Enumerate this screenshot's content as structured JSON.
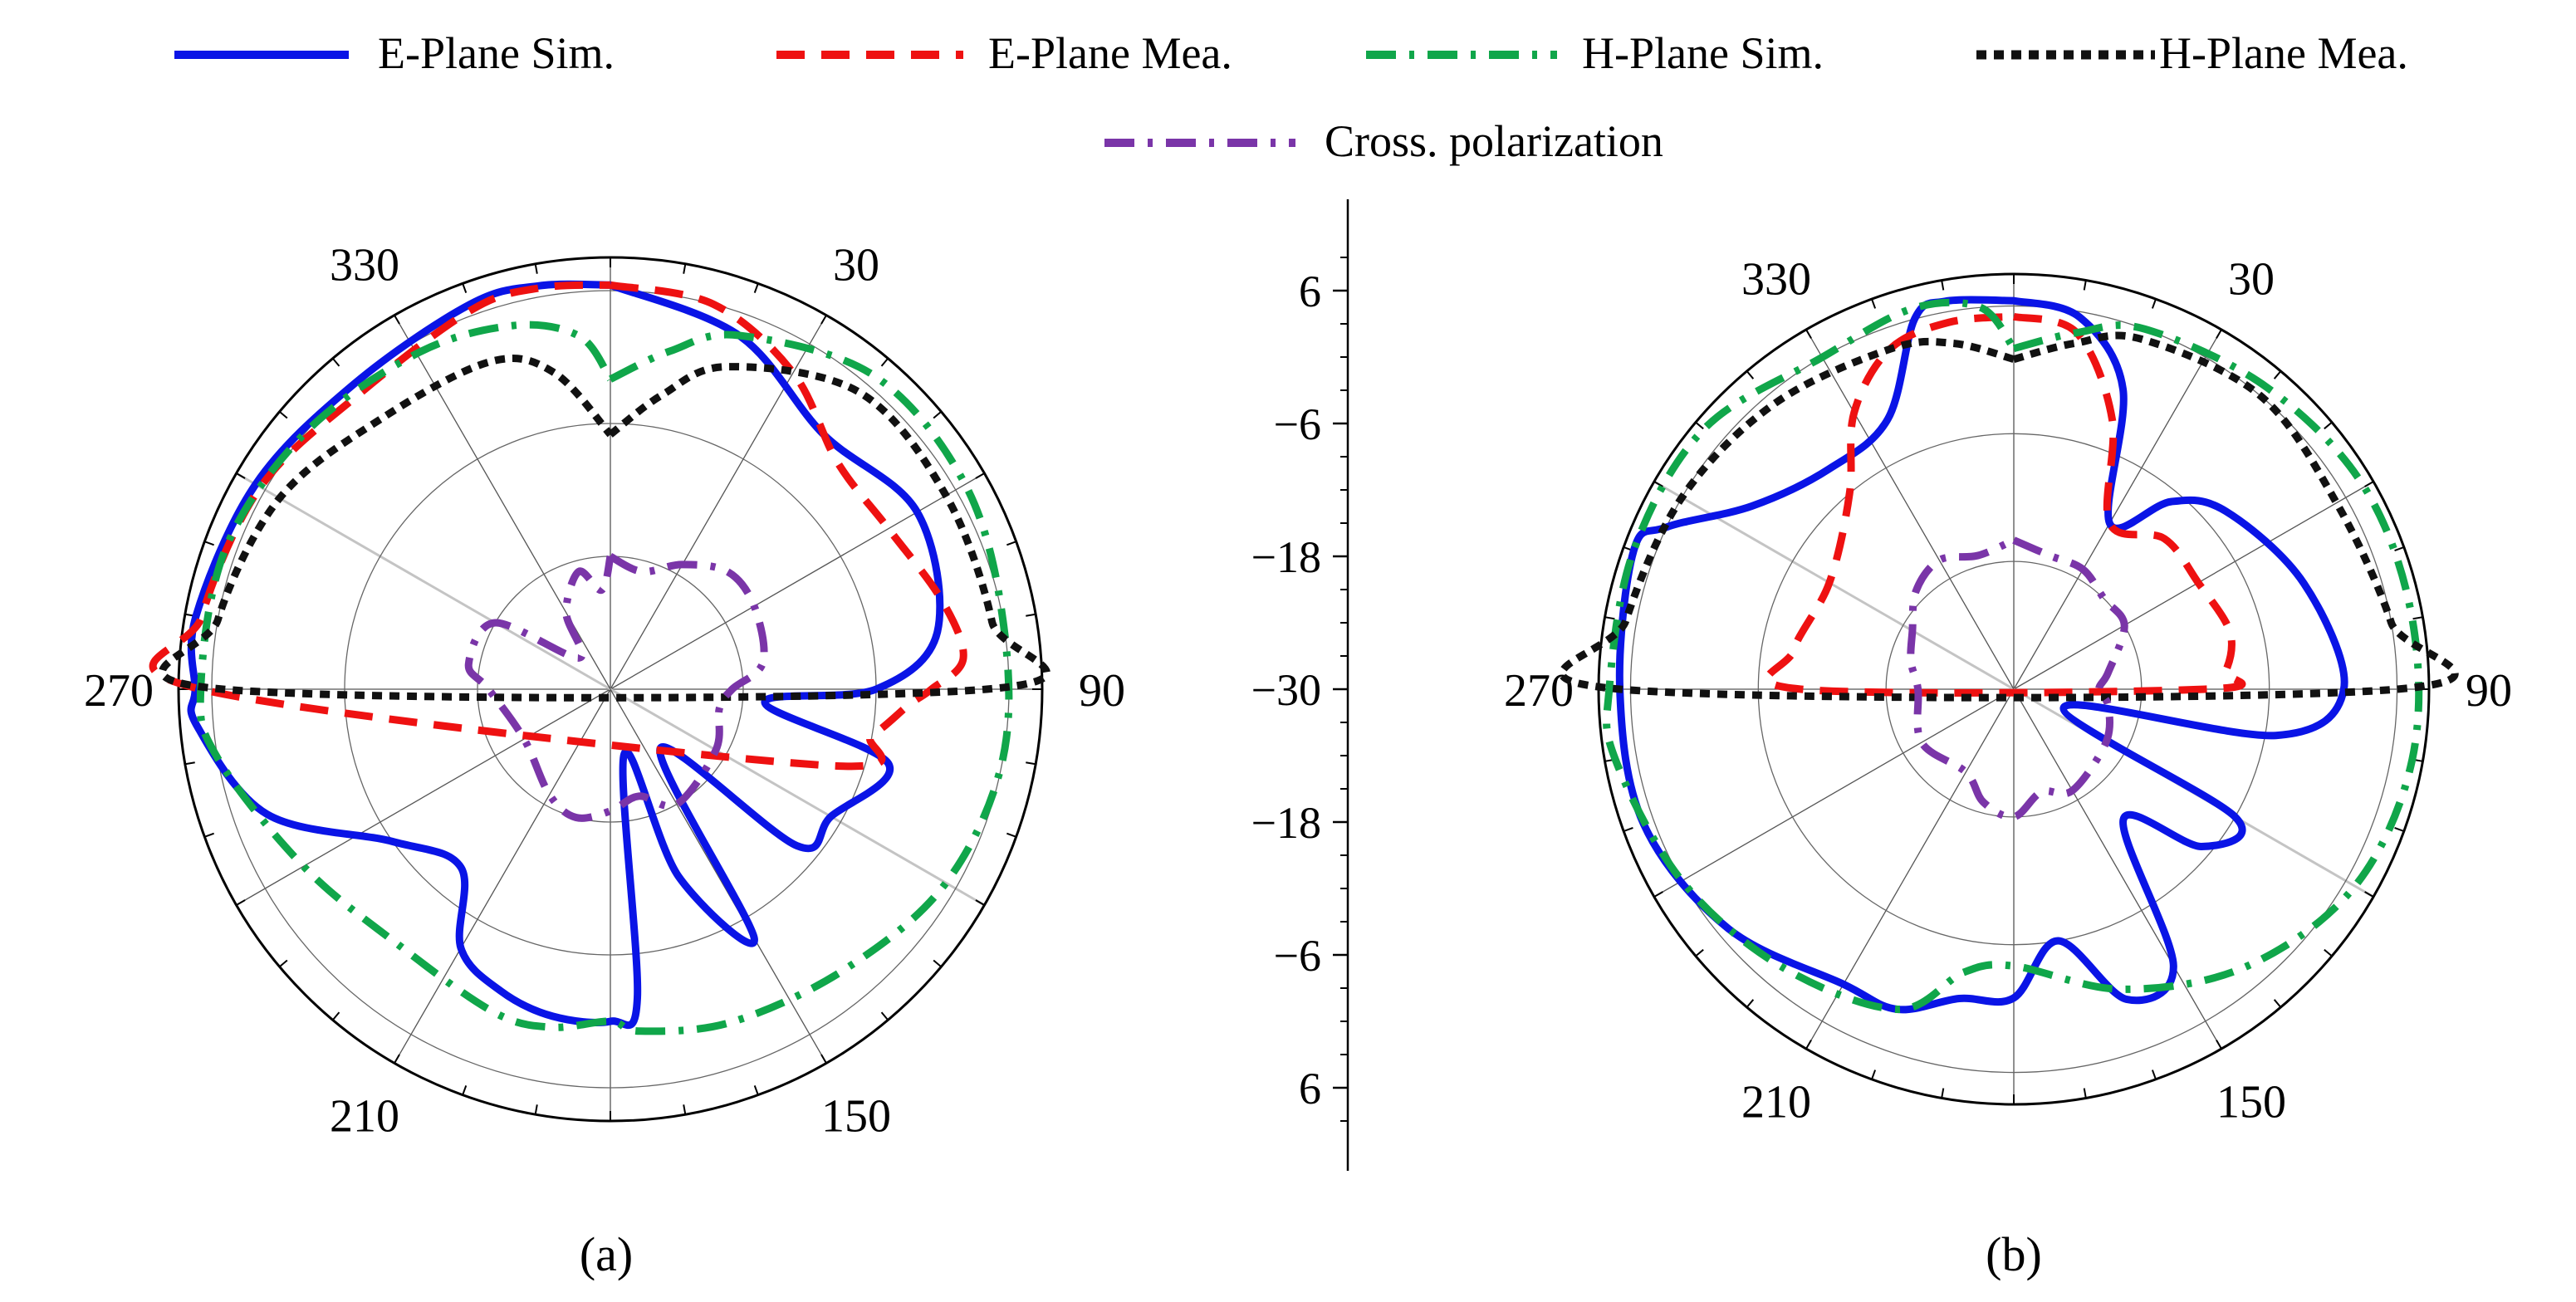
{
  "figure": {
    "legend": [
      {
        "label": "E-Plane Sim.",
        "color": "#0a14e6",
        "style": "solid"
      },
      {
        "label": "E-Plane Mea.",
        "color": "#ee1111",
        "style": "dash"
      },
      {
        "label": "H-Plane Sim.",
        "color": "#10a64a",
        "style": "dashdot"
      },
      {
        "label": "H-Plane Mea.",
        "color": "#111111",
        "style": "dot"
      },
      {
        "label": "Cross. polarization",
        "color": "#7a35a8",
        "style": "dashdot"
      }
    ],
    "radial_scale": {
      "ticks": [
        "6",
        "−6",
        "−18",
        "−30",
        "−18",
        "−6",
        "6"
      ],
      "values": [
        6,
        -6,
        -18,
        -30,
        -18,
        -6,
        6
      ],
      "range": [
        -30,
        9
      ]
    },
    "angle_tick_labels": [
      "30",
      "90",
      "150",
      "210",
      "270",
      "330"
    ]
  },
  "chart_data": [
    {
      "type": "polar-line",
      "panel_label": "(a)",
      "angle_ticks": [
        0,
        30,
        60,
        90,
        120,
        150,
        180,
        210,
        240,
        270,
        300,
        330
      ],
      "angle_labels": [
        "30",
        "90",
        "150",
        "210",
        "270",
        "330"
      ],
      "r_range": [
        -30,
        9
      ],
      "r_grid": [
        -30,
        -18,
        -6,
        6
      ],
      "series": [
        {
          "name": "E-Plane Sim.",
          "angles": [
            0,
            20,
            40,
            60,
            80,
            90,
            95,
            105,
            120,
            130,
            140,
            150,
            160,
            168,
            175,
            180,
            190,
            200,
            210,
            220,
            235,
            250,
            265,
            270,
            280,
            300,
            320,
            340,
            350,
            360
          ],
          "values": [
            6.5,
            4,
            0,
            2,
            0,
            -6,
            -16,
            -4,
            -7,
            -8,
            -23,
            -4,
            -12,
            -24,
            -2,
            0,
            0,
            -1,
            -3,
            -9,
            -6,
            3,
            7.5,
            7.5,
            8,
            7,
            6,
            7,
            7,
            6.5
          ]
        },
        {
          "name": "E-Plane Mea.",
          "angles": [
            0,
            15,
            30,
            45,
            60,
            75,
            85,
            90,
            93,
            100,
            110,
            270,
            280,
            300,
            320,
            340,
            350,
            360
          ],
          "values": [
            6.5,
            6,
            3,
            -1,
            -1,
            1,
            2,
            -1,
            -3,
            -6,
            -10,
            7,
            7.5,
            6.5,
            5,
            6.5,
            6.8,
            6.5
          ]
        },
        {
          "name": "H-Plane Sim.",
          "angles": [
            0,
            10,
            20,
            40,
            60,
            80,
            100,
            120,
            140,
            160,
            175,
            180,
            190,
            200,
            220,
            240,
            260,
            270,
            290,
            310,
            330,
            345,
            355,
            360
          ],
          "values": [
            -2,
            1,
            4,
            7,
            7,
            6,
            6,
            5,
            3,
            2,
            1,
            0,
            1,
            1,
            0,
            2,
            6,
            7,
            7,
            6,
            5,
            4,
            2,
            -2
          ]
        },
        {
          "name": "H-Plane Mea.",
          "angles": [
            0,
            10,
            20,
            40,
            60,
            80,
            90,
            270,
            280,
            300,
            320,
            340,
            350,
            360
          ],
          "values": [
            -7,
            -3,
            1,
            5,
            5,
            5,
            4,
            5,
            6,
            4.5,
            2,
            1.5,
            -1,
            -7
          ]
        },
        {
          "name": "Cross. polarization",
          "angles": [
            0,
            15,
            30,
            45,
            60,
            80,
            90,
            100,
            120,
            150,
            165,
            180,
            195,
            210,
            240,
            270,
            280,
            300,
            315,
            330,
            345,
            355,
            360
          ],
          "values": [
            -18,
            -19,
            -17,
            -15,
            -15,
            -16,
            -19,
            -20,
            -19,
            -18,
            -20,
            -19,
            -18,
            -19,
            -21,
            -19,
            -17,
            -18,
            -26,
            -22,
            -19,
            -21,
            -18
          ]
        }
      ]
    },
    {
      "type": "polar-line",
      "panel_label": "(b)",
      "angle_ticks": [
        0,
        30,
        60,
        90,
        120,
        150,
        180,
        210,
        240,
        270,
        300,
        330
      ],
      "angle_labels": [
        "30",
        "90",
        "150",
        "210",
        "270",
        "330"
      ],
      "r_range": [
        -30,
        9
      ],
      "r_grid": [
        -30,
        -18,
        -6,
        6
      ],
      "series": [
        {
          "name": "E-Plane Sim.",
          "angles": [
            0,
            10,
            20,
            30,
            40,
            50,
            70,
            90,
            100,
            110,
            120,
            130,
            140,
            150,
            160,
            170,
            180,
            190,
            200,
            210,
            230,
            250,
            270,
            290,
            295,
            305,
            320,
            335,
            345,
            350,
            360
          ],
          "values": [
            6.5,
            5.5,
            0,
            -12,
            -7,
            -4,
            -1,
            1,
            -5,
            -25,
            -6,
            -7,
            -14,
            0,
            1,
            -6,
            -1,
            -0.5,
            2,
            2,
            5,
            7,
            7,
            8,
            6,
            0,
            -3,
            -2,
            6,
            7,
            6.5
          ]
        },
        {
          "name": "E-Plane Mea.",
          "angles": [
            0,
            10,
            20,
            30,
            45,
            60,
            75,
            85,
            90,
            270,
            280,
            300,
            320,
            330,
            340,
            350,
            360
          ],
          "values": [
            5,
            4,
            -3,
            -12,
            -10,
            -10,
            -9,
            -10,
            -12,
            -10,
            -9,
            -10,
            -6,
            0,
            4,
            5,
            5
          ]
        },
        {
          "name": "H-Plane Sim.",
          "angles": [
            0,
            10,
            20,
            40,
            60,
            80,
            100,
            120,
            140,
            160,
            180,
            190,
            200,
            220,
            240,
            260,
            270,
            290,
            310,
            330,
            345,
            355,
            360
          ],
          "values": [
            2,
            4,
            6,
            7,
            8,
            8,
            8,
            7,
            4,
            0,
            -4,
            -3,
            2,
            4,
            6,
            8,
            8,
            8,
            8,
            6,
            7,
            6,
            2
          ]
        },
        {
          "name": "H-Plane Mea.",
          "angles": [
            0,
            10,
            20,
            40,
            60,
            80,
            90,
            270,
            280,
            300,
            320,
            340,
            350,
            360
          ],
          "values": [
            1,
            3,
            5,
            6,
            5,
            6,
            6,
            7,
            7,
            6,
            5,
            4,
            3,
            1
          ]
        },
        {
          "name": "Cross. polarization",
          "angles": [
            0,
            15,
            30,
            45,
            60,
            80,
            90,
            100,
            120,
            150,
            165,
            180,
            195,
            210,
            240,
            270,
            285,
            300,
            315,
            330,
            345,
            360
          ],
          "values": [
            -16,
            -17,
            -17,
            -18,
            -18,
            -21,
            -22,
            -21,
            -20,
            -19,
            -20,
            -18,
            -19,
            -21,
            -20,
            -21,
            -20,
            -19,
            -17,
            -16,
            -17,
            -16
          ]
        }
      ]
    }
  ]
}
